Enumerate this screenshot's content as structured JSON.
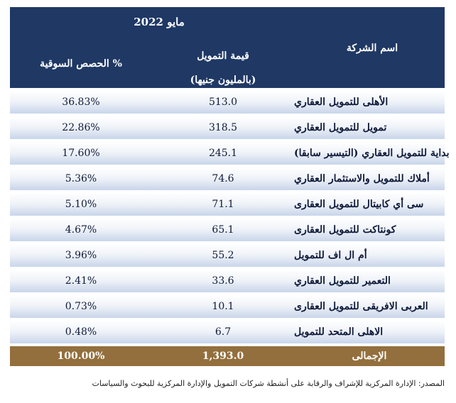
{
  "table": {
    "period": "مايو 2022",
    "headers": {
      "company": "اسم الشركة",
      "value_line1": "قيمة التمويل",
      "value_line2": "(بالمليون جنيها)",
      "share": "الحصص السوقية %"
    },
    "rows": [
      {
        "company": "الأهلى للتمويل العقاري",
        "value": "513.0",
        "share": "36.83%"
      },
      {
        "company": "تمويل للتمويل العقاري",
        "value": "318.5",
        "share": "22.86%"
      },
      {
        "company": "بداية للتمويل العقاري (التيسير سابقا)",
        "value": "245.1",
        "share": "17.60%"
      },
      {
        "company": "أملاك للتمويل والاستثمار العقاري",
        "value": "74.6",
        "share": "5.36%"
      },
      {
        "company": "سى أي كابيتال للتمويل العقارى",
        "value": "71.1",
        "share": "5.10%"
      },
      {
        "company": "كونتاكت للتمويل العقارى",
        "value": "65.1",
        "share": "4.67%"
      },
      {
        "company": "أم ال اف للتمويل",
        "value": "55.2",
        "share": "3.96%"
      },
      {
        "company": "التعمير للتمويل العقاري",
        "value": "33.6",
        "share": "2.41%"
      },
      {
        "company": "العربى الافريقى للتمويل العقارى",
        "value": "10.1",
        "share": "0.73%"
      },
      {
        "company": "الاهلى المتحد للتمويل",
        "value": "6.7",
        "share": "0.48%"
      }
    ],
    "total": {
      "company": "الإجمالى",
      "value": "1,393.0",
      "share": "100.00%"
    }
  },
  "source": "المصدر: الإدارة المركزية للإشراف والرقابة على أنشطة شركات التمويل والإدارة المركزية للبحوث والسياسات",
  "colors": {
    "header_bg": "#1f3864",
    "total_bg": "#936f3d",
    "row_gradient_end": "#c8d5ea"
  }
}
